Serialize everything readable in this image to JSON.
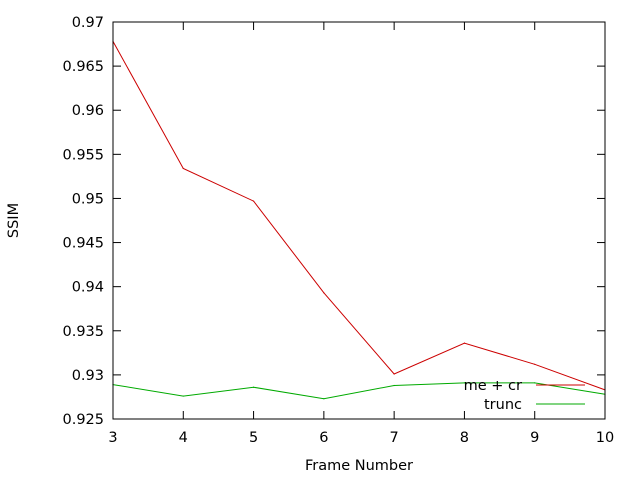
{
  "chart_data": {
    "type": "line",
    "title": "",
    "xlabel": "Frame Number",
    "ylabel": "SSIM",
    "xlim": [
      3,
      10
    ],
    "ylim": [
      0.925,
      0.97
    ],
    "x_ticks": [
      "3",
      "4",
      "5",
      "6",
      "7",
      "8",
      "9",
      "10"
    ],
    "y_ticks": [
      "0.925",
      "0.93",
      "0.935",
      "0.94",
      "0.945",
      "0.95",
      "0.955",
      "0.96",
      "0.965",
      "0.97"
    ],
    "grid": false,
    "legend_position": "bottom-right",
    "x": [
      3,
      4,
      5,
      6,
      7,
      8,
      9,
      10
    ],
    "series": [
      {
        "name": "me + cr",
        "color": "#cc0000",
        "values": [
          0.9678,
          0.9534,
          0.9497,
          0.9393,
          0.9301,
          0.9336,
          0.9312,
          0.9283
        ]
      },
      {
        "name": "trunc",
        "color": "#00aa00",
        "values": [
          0.9289,
          0.9276,
          0.9286,
          0.9273,
          0.9288,
          0.9291,
          0.9291,
          0.9278
        ]
      }
    ]
  }
}
